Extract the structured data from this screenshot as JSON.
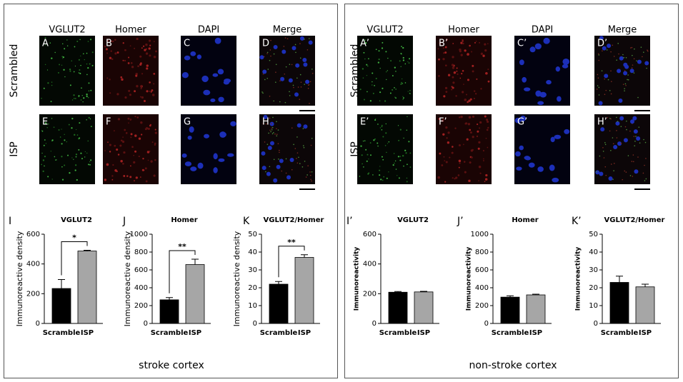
{
  "panels": [
    {
      "columns": [
        "VGLUT2",
        "Homer",
        "DAPI",
        "Merge"
      ],
      "rows": [
        "Scrambled",
        "ISP"
      ],
      "letters": [
        [
          "A",
          "B",
          "C",
          "D"
        ],
        [
          "E",
          "F",
          "G",
          "H"
        ]
      ]
    },
    {
      "columns": [
        "VGLUT2",
        "Homer",
        "DAPI",
        "Merge"
      ],
      "rows": [
        "Scrambled",
        "ISP"
      ],
      "letters": [
        [
          "A’",
          "B’",
          "C’",
          "D’"
        ],
        [
          "E’",
          "F’",
          "G’",
          "H’"
        ]
      ]
    }
  ],
  "chart_data": [
    {
      "type": "bar",
      "panel": "I",
      "title": "VGLUT2",
      "ylabel": "Immunoreactive density",
      "categories": [
        "Scramble",
        "ISP"
      ],
      "values": [
        235,
        487
      ],
      "errors": [
        60,
        5
      ],
      "colors": [
        "#000000",
        "#a6a6a6"
      ],
      "ylim": [
        0,
        600
      ],
      "yticks": [
        0,
        200,
        400,
        600
      ],
      "annotation": "*"
    },
    {
      "type": "bar",
      "panel": "J",
      "title": "Homer",
      "ylabel": "Immunoreactive density",
      "categories": [
        "Scramble",
        "ISP"
      ],
      "values": [
        265,
        660
      ],
      "errors": [
        25,
        60
      ],
      "colors": [
        "#000000",
        "#a6a6a6"
      ],
      "ylim": [
        0,
        1000
      ],
      "yticks": [
        0,
        200,
        400,
        600,
        800,
        1000
      ],
      "annotation": "**"
    },
    {
      "type": "bar",
      "panel": "K",
      "title": "VGLUT2/Homer",
      "ylabel": "Immunoreactive density",
      "categories": [
        "Scramble",
        "ISP"
      ],
      "values": [
        22,
        37
      ],
      "errors": [
        1.5,
        1.5
      ],
      "colors": [
        "#000000",
        "#a6a6a6"
      ],
      "ylim": [
        0,
        50
      ],
      "yticks": [
        0,
        10,
        20,
        30,
        40,
        50
      ],
      "annotation": "**"
    },
    {
      "type": "bar",
      "panel": "I’",
      "title": "VGLUT2",
      "ylabel": "Immunoreactivity",
      "categories": [
        "Scramble",
        "ISP"
      ],
      "values": [
        210,
        212
      ],
      "errors": [
        5,
        4
      ],
      "colors": [
        "#000000",
        "#a6a6a6"
      ],
      "ylim": [
        0,
        600
      ],
      "yticks": [
        0,
        200,
        400,
        600
      ]
    },
    {
      "type": "bar",
      "panel": "J’",
      "title": "Homer",
      "ylabel": "Immunoreactivity",
      "categories": [
        "Scramble",
        "ISP"
      ],
      "values": [
        295,
        320
      ],
      "errors": [
        15,
        8
      ],
      "colors": [
        "#000000",
        "#a6a6a6"
      ],
      "ylim": [
        0,
        1000
      ],
      "yticks": [
        0,
        200,
        400,
        600,
        800,
        1000
      ]
    },
    {
      "type": "bar",
      "panel": "K’",
      "title": "VGLUT2/Homer",
      "ylabel": "Immunoreactivity",
      "categories": [
        "Scramble",
        "ISP"
      ],
      "values": [
        23,
        20.5
      ],
      "errors": [
        3.5,
        1.5
      ],
      "colors": [
        "#000000",
        "#a6a6a6"
      ],
      "ylim": [
        0,
        50
      ],
      "yticks": [
        0,
        10,
        20,
        30,
        40,
        50
      ]
    }
  ],
  "captions": [
    "stroke cortex",
    "non-stroke cortex"
  ]
}
